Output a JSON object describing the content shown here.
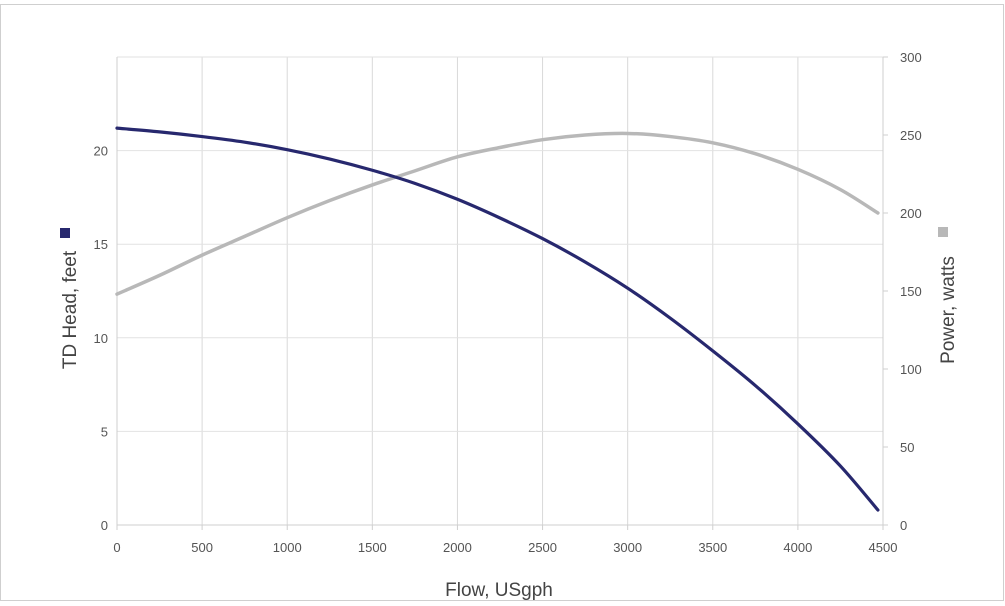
{
  "chart_data": {
    "type": "line",
    "xlabel": "Flow, USgph",
    "ylabel_left": "TD Head, feet",
    "ylabel_right": "Power, watts",
    "xlim": [
      0,
      4500
    ],
    "ylim_left": [
      0,
      25
    ],
    "ylim_right": [
      0,
      300
    ],
    "x_ticks": [
      0,
      500,
      1000,
      1500,
      2000,
      2500,
      3000,
      3500,
      4000,
      4500
    ],
    "y_left_ticks": [
      0,
      5,
      10,
      15,
      20
    ],
    "y_right_ticks": [
      0,
      50,
      100,
      150,
      200,
      250,
      300
    ],
    "grid": true,
    "legend": "axis-title markers (left: navy square, right: gray square)",
    "series": [
      {
        "name": "TD Head, feet",
        "axis": "left",
        "color": "#27286e",
        "x": [
          0,
          250,
          500,
          750,
          1000,
          1250,
          1500,
          1750,
          2000,
          2250,
          2500,
          2750,
          3000,
          3250,
          3500,
          3750,
          4000,
          4250,
          4470
        ],
        "values": [
          21.2,
          21.0,
          20.75,
          20.45,
          20.05,
          19.55,
          18.95,
          18.25,
          17.4,
          16.4,
          15.3,
          14.05,
          12.65,
          11.05,
          9.3,
          7.45,
          5.4,
          3.15,
          0.8
        ]
      },
      {
        "name": "Power, watts",
        "axis": "right",
        "color": "#b8b8b8",
        "x": [
          0,
          250,
          500,
          750,
          1000,
          1250,
          1500,
          1750,
          2000,
          2250,
          2500,
          2750,
          3000,
          3250,
          3500,
          3750,
          4000,
          4250,
          4470
        ],
        "values": [
          148,
          160,
          173,
          185,
          197,
          208,
          218,
          227,
          236,
          242,
          247,
          250,
          251,
          249,
          245,
          238,
          228,
          215,
          200
        ]
      }
    ]
  }
}
